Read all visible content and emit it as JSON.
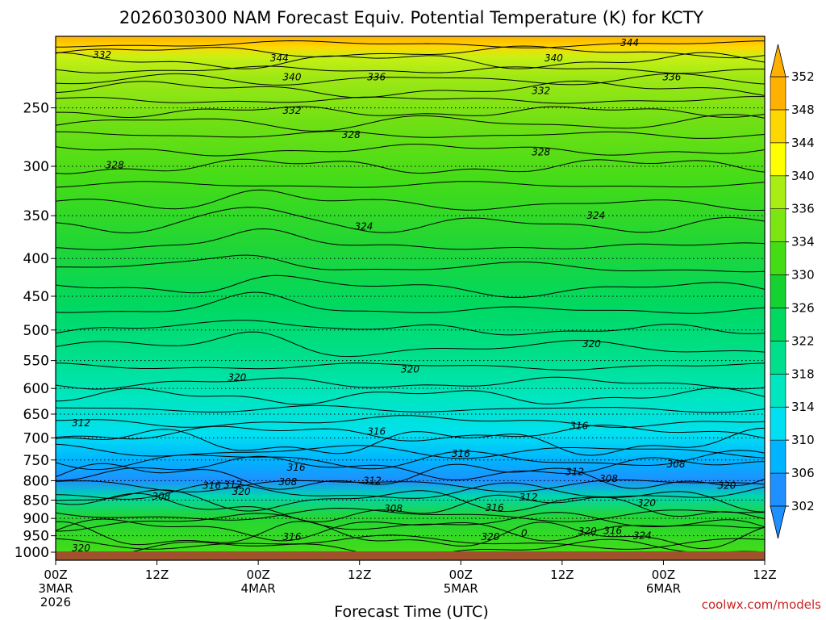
{
  "chart_data": {
    "type": "heatmap",
    "title": "2026030300 NAM Forecast Equiv. Potential Temperature (K) for KCTY",
    "xlabel": "Forecast Time (UTC)",
    "ylabel": "",
    "y_scale": "pressure (log)",
    "ylim": [
      1000,
      200
    ],
    "x_ticks": [
      {
        "hour": 0,
        "lines": [
          "00Z",
          "3MAR",
          "2026"
        ]
      },
      {
        "hour": 12,
        "lines": [
          "12Z"
        ]
      },
      {
        "hour": 24,
        "lines": [
          "00Z",
          "4MAR"
        ]
      },
      {
        "hour": 36,
        "lines": [
          "12Z"
        ]
      },
      {
        "hour": 48,
        "lines": [
          "00Z",
          "5MAR"
        ]
      },
      {
        "hour": 60,
        "lines": [
          "12Z"
        ]
      },
      {
        "hour": 72,
        "lines": [
          "00Z",
          "6MAR"
        ]
      },
      {
        "hour": 84,
        "lines": [
          "12Z"
        ]
      }
    ],
    "y_ticks": [
      250,
      300,
      350,
      400,
      450,
      500,
      550,
      600,
      650,
      700,
      750,
      800,
      850,
      900,
      950,
      1000
    ],
    "colorbar": {
      "levels": [
        302,
        306,
        310,
        314,
        318,
        322,
        326,
        330,
        334,
        336,
        340,
        344,
        348,
        352
      ],
      "colors": [
        "#1e90ff",
        "#00b4ff",
        "#00e0f0",
        "#00e6c0",
        "#00e08c",
        "#00d860",
        "#14d230",
        "#44dc14",
        "#7ce614",
        "#a8ee14",
        "#ffff00",
        "#ffd700",
        "#ffb000"
      ]
    },
    "contour_labels": [
      {
        "text": "332",
        "hour": 5.5,
        "p": 212
      },
      {
        "text": "344",
        "hour": 26.5,
        "p": 214
      },
      {
        "text": "340",
        "hour": 28,
        "p": 227
      },
      {
        "text": "336",
        "hour": 38,
        "p": 227
      },
      {
        "text": "344",
        "hour": 68,
        "p": 204
      },
      {
        "text": "340",
        "hour": 59,
        "p": 214
      },
      {
        "text": "336",
        "hour": 73,
        "p": 227
      },
      {
        "text": "332",
        "hour": 28,
        "p": 252
      },
      {
        "text": "332",
        "hour": 57.5,
        "p": 237
      },
      {
        "text": "328",
        "hour": 35,
        "p": 272
      },
      {
        "text": "328",
        "hour": 57.5,
        "p": 287
      },
      {
        "text": "328",
        "hour": 7,
        "p": 299
      },
      {
        "text": "324",
        "hour": 36.5,
        "p": 362
      },
      {
        "text": "324",
        "hour": 64,
        "p": 350
      },
      {
        "text": "320",
        "hour": 63.5,
        "p": 522
      },
      {
        "text": "320",
        "hour": 42,
        "p": 565
      },
      {
        "text": "320",
        "hour": 21.5,
        "p": 580
      },
      {
        "text": "312",
        "hour": 3,
        "p": 668
      },
      {
        "text": "316",
        "hour": 38,
        "p": 686
      },
      {
        "text": "316",
        "hour": 62,
        "p": 674
      },
      {
        "text": "316",
        "hour": 48,
        "p": 735
      },
      {
        "text": "316",
        "hour": 28.5,
        "p": 768
      },
      {
        "text": "312",
        "hour": 61.5,
        "p": 778
      },
      {
        "text": "308",
        "hour": 73.5,
        "p": 760
      },
      {
        "text": "308",
        "hour": 65.5,
        "p": 795
      },
      {
        "text": "316",
        "hour": 18.5,
        "p": 812
      },
      {
        "text": "312",
        "hour": 21,
        "p": 810
      },
      {
        "text": "308",
        "hour": 27.5,
        "p": 803
      },
      {
        "text": "312",
        "hour": 37.5,
        "p": 800
      },
      {
        "text": "320",
        "hour": 79.5,
        "p": 812
      },
      {
        "text": "308",
        "hour": 12.5,
        "p": 840
      },
      {
        "text": "320",
        "hour": 22,
        "p": 828
      },
      {
        "text": "312",
        "hour": 56,
        "p": 843
      },
      {
        "text": "308",
        "hour": 40,
        "p": 873
      },
      {
        "text": "316",
        "hour": 52,
        "p": 871
      },
      {
        "text": "320",
        "hour": 70,
        "p": 858
      },
      {
        "text": "316",
        "hour": 28,
        "p": 953
      },
      {
        "text": "320",
        "hour": 51.5,
        "p": 953
      },
      {
        "text": "0",
        "hour": 55.5,
        "p": 942
      },
      {
        "text": "320",
        "hour": 63,
        "p": 937
      },
      {
        "text": "316",
        "hour": 66,
        "p": 935
      },
      {
        "text": "324",
        "hour": 69.5,
        "p": 950
      },
      {
        "text": "320",
        "hour": 3,
        "p": 988
      }
    ]
  },
  "credit": "coolwx.com/models"
}
